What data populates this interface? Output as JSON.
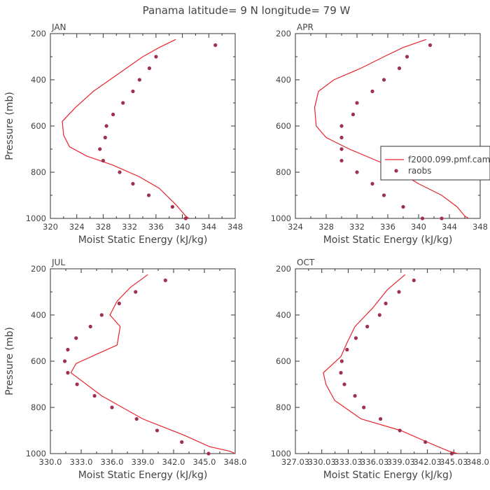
{
  "figure": {
    "title": "Panama  latitude= 9 N longitude= 79 W"
  },
  "colors": {
    "model": "#e8242f",
    "obs": "#a03050",
    "axis": "#333333",
    "text": "#444444"
  },
  "legend": {
    "model_label": "f2000.099.pmf.cam",
    "obs_label": "raobs"
  },
  "chart_data": [
    {
      "type": "line",
      "panel_label": "JAN",
      "xlabel": "Moist Static Energy (kJ/kg)",
      "ylabel": "Pressure (mb)",
      "xlim": [
        320,
        348
      ],
      "ylim": [
        200,
        1000
      ],
      "xticks": [
        "320",
        "324",
        "328",
        "332",
        "336",
        "340",
        "344",
        "348"
      ],
      "yticks": [
        "200",
        "400",
        "600",
        "800",
        "1000"
      ],
      "series": [
        {
          "name": "f2000.099.pmf.cam",
          "style": "line",
          "x": [
            339.0,
            336.5,
            334.0,
            331.5,
            329.0,
            326.5,
            323.8,
            321.8,
            322.0,
            322.9,
            325.5,
            329.5,
            333.5,
            336.5,
            339.0,
            340.5,
            341.0
          ],
          "y": [
            225,
            260,
            300,
            350,
            400,
            450,
            520,
            580,
            640,
            690,
            730,
            770,
            820,
            870,
            940,
            990,
            1000
          ]
        },
        {
          "name": "raobs",
          "style": "scatter",
          "x": [
            345.0,
            336.0,
            335.0,
            333.5,
            332.5,
            331.0,
            329.5,
            328.5,
            328.3,
            327.5,
            328.0,
            330.5,
            332.5,
            334.9,
            338.5,
            340.5
          ],
          "y": [
            250,
            300,
            350,
            400,
            450,
            500,
            550,
            600,
            650,
            700,
            750,
            800,
            850,
            900,
            950,
            1000
          ]
        }
      ]
    },
    {
      "type": "line",
      "panel_label": "APR",
      "xlabel": "Moist Static Energy (kJ/kg)",
      "ylabel": "",
      "xlim": [
        324,
        348
      ],
      "ylim": [
        200,
        1000
      ],
      "xticks": [
        "324",
        "328",
        "332",
        "336",
        "340",
        "344",
        "348"
      ],
      "yticks": [
        "200",
        "400",
        "600",
        "800",
        "1000"
      ],
      "series": [
        {
          "name": "f2000.099.pmf.cam",
          "style": "line",
          "x": [
            341.0,
            338.0,
            335.5,
            332.5,
            329.0,
            327.0,
            326.5,
            326.7,
            328.0,
            331.0,
            336.0,
            340.0,
            343.0,
            345.0,
            346.0,
            346.5
          ],
          "y": [
            225,
            260,
            300,
            350,
            400,
            450,
            520,
            600,
            650,
            700,
            770,
            850,
            900,
            950,
            990,
            1000
          ]
        },
        {
          "name": "raobs",
          "style": "scatter",
          "x": [
            341.5,
            338.5,
            337.5,
            335.5,
            334.0,
            332.0,
            331.5,
            330.0,
            330.0,
            330.0,
            330.0,
            332.0,
            334.0,
            335.5,
            338.0,
            340.5,
            343.0
          ],
          "y": [
            250,
            300,
            350,
            400,
            450,
            500,
            550,
            600,
            650,
            700,
            750,
            800,
            850,
            900,
            950,
            1000,
            1000
          ]
        }
      ]
    },
    {
      "type": "line",
      "panel_label": "JUL",
      "xlabel": "Moist Static Energy (kJ/kg)",
      "ylabel": "Pressure (mb)",
      "xlim": [
        330.0,
        348.0
      ],
      "ylim": [
        200,
        1000
      ],
      "xticks": [
        "330.0",
        "333.0",
        "336.0",
        "339.0",
        "342.0",
        "345.0",
        "348.0"
      ],
      "yticks": [
        "200",
        "400",
        "600",
        "800",
        "1000"
      ],
      "series": [
        {
          "name": "f2000.099.pmf.cam",
          "style": "line",
          "x": [
            339.5,
            337.8,
            336.5,
            335.8,
            336.8,
            336.5,
            334.5,
            332.5,
            332.0,
            335.0,
            339.0,
            343.0,
            345.5,
            347.5,
            348.0
          ],
          "y": [
            225,
            280,
            340,
            400,
            450,
            530,
            570,
            610,
            650,
            750,
            850,
            920,
            970,
            990,
            1000
          ]
        },
        {
          "name": "raobs",
          "style": "scatter",
          "x": [
            341.2,
            338.3,
            336.7,
            335.0,
            333.9,
            332.5,
            331.7,
            331.4,
            331.7,
            332.6,
            334.3,
            336.0,
            338.4,
            340.4,
            342.8,
            345.4
          ],
          "y": [
            250,
            300,
            350,
            400,
            450,
            500,
            550,
            600,
            650,
            700,
            750,
            800,
            850,
            900,
            950,
            1000
          ]
        }
      ]
    },
    {
      "type": "line",
      "panel_label": "OCT",
      "xlabel": "Moist Static Energy (kJ/kg)",
      "ylabel": "",
      "xlim": [
        327.03,
        348.03
      ],
      "ylim": [
        200,
        1000
      ],
      "xticks": [
        "327.03",
        "330.03",
        "333.03",
        "336.03",
        "339.03",
        "342.03",
        "345.03",
        "348.03"
      ],
      "yticks": [
        "200",
        "400",
        "600",
        "800",
        "1000"
      ],
      "series": [
        {
          "name": "f2000.099.pmf.cam",
          "style": "line",
          "x": [
            339.5,
            337.5,
            335.8,
            333.8,
            332.9,
            332.2,
            330.2,
            330.5,
            331.5,
            334.5,
            339.0,
            342.0,
            344.5,
            345.5
          ],
          "y": [
            225,
            290,
            370,
            450,
            520,
            580,
            650,
            700,
            770,
            850,
            900,
            950,
            990,
            1000
          ]
        },
        {
          "name": "raobs",
          "style": "scatter",
          "x": [
            340.5,
            338.8,
            337.3,
            336.6,
            335.2,
            333.9,
            332.9,
            332.3,
            332.2,
            332.6,
            333.8,
            334.8,
            336.7,
            338.9,
            341.8,
            344.8
          ],
          "y": [
            250,
            300,
            350,
            400,
            450,
            500,
            550,
            600,
            650,
            700,
            750,
            800,
            850,
            900,
            950,
            1000
          ]
        }
      ]
    }
  ]
}
